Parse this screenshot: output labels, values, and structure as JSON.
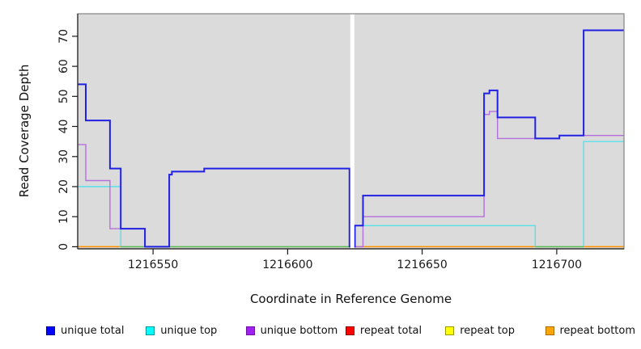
{
  "figure": {
    "plot_bg": "#DBDBDB",
    "border_color": "#848484",
    "axis_color": "#1a1a1a",
    "gap_color": "#FFFFFF"
  },
  "chart_data": {
    "type": "line",
    "step": true,
    "title": "",
    "xlabel": "Coordinate in Reference Genome",
    "ylabel": "Read Coverage Depth",
    "xlim": [
      1216522,
      1216725
    ],
    "ylim": [
      -0.7,
      77.5
    ],
    "x_ticks": [
      1216550,
      1216600,
      1216650,
      1216700
    ],
    "y_ticks": [
      0,
      10,
      20,
      30,
      40,
      50,
      60,
      70
    ],
    "grid": false,
    "legend_position": "bottom",
    "gap": {
      "from": 1216623.3,
      "to": 1216624.8,
      "note": "white no-data stripe"
    },
    "series": [
      {
        "name": "repeat total",
        "slug": "repeat-total",
        "color": "#FF0000",
        "width": 1.2,
        "points": [
          [
            1216522,
            0
          ],
          [
            1216725,
            0
          ]
        ]
      },
      {
        "name": "repeat top",
        "slug": "repeat-top",
        "color": "#FFFF00",
        "width": 1.2,
        "points": [
          [
            1216522,
            0
          ],
          [
            1216725,
            0
          ]
        ]
      },
      {
        "name": "repeat bottom",
        "slug": "repeat-bottom",
        "color": "#FF9100",
        "width": 1.4,
        "points": [
          [
            1216522,
            0
          ],
          [
            1216725,
            0
          ]
        ]
      },
      {
        "name": "unique top",
        "slug": "unique-top",
        "color": "#55E2E9",
        "width": 1.4,
        "points": [
          [
            1216522,
            20
          ],
          [
            1216538,
            0
          ],
          [
            1216625,
            7
          ],
          [
            1216692,
            0
          ],
          [
            1216710,
            35
          ],
          [
            1216725,
            35
          ]
        ]
      },
      {
        "name": "unique bottom",
        "slug": "unique-bottom",
        "color": "#B36FDC",
        "width": 1.4,
        "points": [
          [
            1216522,
            34
          ],
          [
            1216525,
            22
          ],
          [
            1216534,
            6
          ],
          [
            1216547,
            0
          ],
          [
            1216556,
            24
          ],
          [
            1216557,
            25
          ],
          [
            1216569,
            26
          ],
          [
            1216623,
            0
          ],
          [
            1216628,
            10
          ],
          [
            1216673,
            44
          ],
          [
            1216675,
            45
          ],
          [
            1216678,
            36
          ],
          [
            1216701,
            37
          ],
          [
            1216725,
            37
          ]
        ]
      },
      {
        "name": "unique total",
        "slug": "unique-total",
        "color": "#2121E3",
        "width": 2,
        "points": [
          [
            1216522,
            54
          ],
          [
            1216525,
            42
          ],
          [
            1216534,
            26
          ],
          [
            1216538,
            6
          ],
          [
            1216547,
            0
          ],
          [
            1216556,
            24
          ],
          [
            1216557,
            25
          ],
          [
            1216569,
            26
          ],
          [
            1216623,
            0
          ],
          [
            1216625,
            7
          ],
          [
            1216628,
            17
          ],
          [
            1216673,
            51
          ],
          [
            1216675,
            52
          ],
          [
            1216678,
            43
          ],
          [
            1216692,
            36
          ],
          [
            1216701,
            37
          ],
          [
            1216710,
            72
          ],
          [
            1216725,
            72
          ]
        ]
      }
    ],
    "overlap_zero_segments": {
      "draw_after": "unique top",
      "segments": [
        {
          "from": 1216538,
          "to": 1216623,
          "color": "#5BBB5B"
        },
        {
          "from": 1216692,
          "to": 1216710,
          "color": "#5BBB5B"
        }
      ]
    }
  },
  "legend": [
    {
      "label": "unique total",
      "slug": "unique-total",
      "fill": "#0000FF",
      "border": "#00009B"
    },
    {
      "label": "unique top",
      "slug": "unique-top",
      "fill": "#00FFFF",
      "border": "#009A9A"
    },
    {
      "label": "unique bottom",
      "slug": "unique-bottom",
      "fill": "#A020F0",
      "border": "#6C12A6"
    },
    {
      "label": "repeat total",
      "slug": "repeat-total",
      "fill": "#FF0000",
      "border": "#9B0000"
    },
    {
      "label": "repeat top",
      "slug": "repeat-top",
      "fill": "#FFFF00",
      "border": "#9A9A00"
    },
    {
      "label": "repeat bottom",
      "slug": "repeat-bottom",
      "fill": "#FFA500",
      "border": "#A66A00"
    }
  ]
}
